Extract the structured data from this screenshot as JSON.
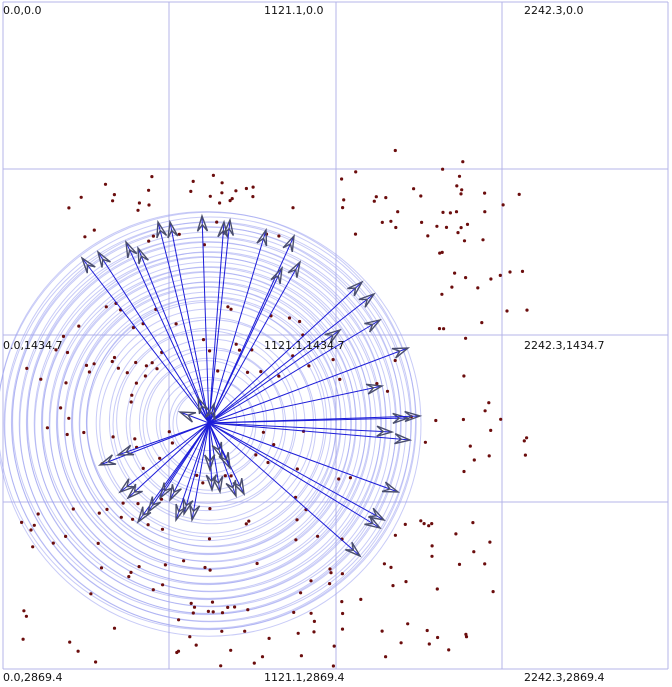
{
  "grid": {
    "labels": [
      "0.0,0.0",
      "1121.1,0.0",
      "2242.3,0.0",
      "0.0,1434.7",
      "1121.1,1434.7",
      "2242.3,1434.7",
      "0.0,2869.4",
      "1121.1,2869.4",
      "2242.3,2869.4"
    ]
  },
  "colors": {
    "grid_line": "#b4b4e8",
    "ring": "#9aa0f0",
    "arrow_line": "#1c1cd8",
    "arrow_head": "#4a4e6e",
    "dot": "#6b0d0d"
  }
}
